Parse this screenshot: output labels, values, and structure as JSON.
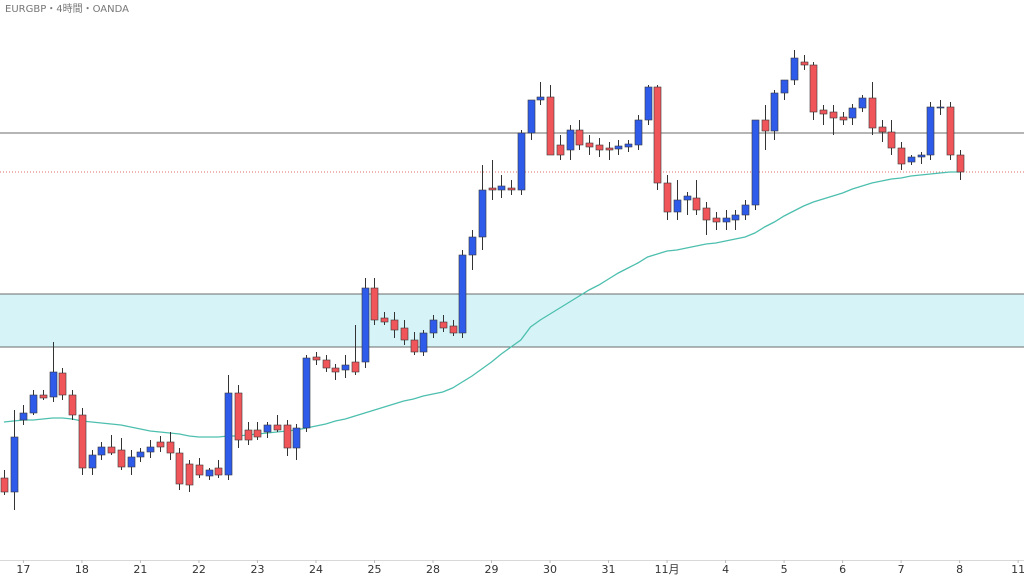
{
  "chart_data": {
    "type": "candlestick",
    "title": "EURGBP・4時間・OANDA",
    "xlim": [
      -0.4,
      104.6
    ],
    "ylim": [
      0,
      560
    ],
    "xticks": [
      {
        "value": 2,
        "label": "17"
      },
      {
        "value": 8,
        "label": "18"
      },
      {
        "value": 14,
        "label": "21"
      },
      {
        "value": 20,
        "label": "22"
      },
      {
        "value": 26,
        "label": "23"
      },
      {
        "value": 32,
        "label": "24"
      },
      {
        "value": 38,
        "label": "25"
      },
      {
        "value": 44,
        "label": "28"
      },
      {
        "value": 50,
        "label": "29"
      },
      {
        "value": 56,
        "label": "30"
      },
      {
        "value": 62,
        "label": "31"
      },
      {
        "value": 68,
        "label": "11月"
      },
      {
        "value": 74,
        "label": "4"
      },
      {
        "value": 80,
        "label": "5"
      },
      {
        "value": 86,
        "label": "6"
      },
      {
        "value": 92,
        "label": "7"
      },
      {
        "value": 98,
        "label": "8"
      },
      {
        "value": 104,
        "label": "11"
      }
    ],
    "up_color": "#2f5bea",
    "down_color": "#f0555a",
    "wick_color": "#333333",
    "open": [
      82,
      68,
      140,
      147,
      165,
      163,
      187,
      165,
      145,
      92,
      105,
      113,
      110,
      93,
      103,
      108,
      118,
      118,
      107,
      96,
      95,
      84,
      92,
      85,
      167,
      130,
      130,
      128,
      135,
      135,
      112,
      132,
      203,
      200,
      192,
      190,
      198,
      198,
      272,
      242,
      240,
      232,
      220,
      208,
      227,
      238,
      234,
      227,
      305,
      323,
      372,
      370,
      372,
      370,
      427,
      460,
      463,
      415,
      410,
      430,
      417,
      415,
      412,
      411,
      413,
      415,
      440,
      473,
      377,
      348,
      360,
      362,
      352,
      342,
      338,
      340,
      345,
      355,
      440,
      429,
      467,
      480,
      498,
      495,
      450,
      448,
      443,
      442,
      452,
      462,
      433,
      428,
      412,
      398,
      403,
      405,
      452,
      453,
      405
    ],
    "high": [
      90,
      150,
      155,
      170,
      170,
      218,
      192,
      170,
      152,
      110,
      118,
      125,
      122,
      110,
      112,
      120,
      124,
      128,
      112,
      100,
      102,
      92,
      100,
      185,
      175,
      138,
      138,
      138,
      145,
      140,
      136,
      205,
      208,
      205,
      196,
      205,
      235,
      282,
      282,
      248,
      248,
      240,
      228,
      230,
      245,
      245,
      240,
      310,
      330,
      395,
      400,
      385,
      380,
      430,
      460,
      478,
      475,
      425,
      435,
      440,
      425,
      422,
      418,
      420,
      420,
      445,
      475,
      475,
      385,
      380,
      368,
      380,
      358,
      348,
      350,
      350,
      360,
      440,
      455,
      470,
      480,
      510,
      505,
      498,
      455,
      455,
      448,
      456,
      465,
      478,
      440,
      440,
      418,
      405,
      408,
      458,
      460,
      458,
      410
    ],
    "low": [
      65,
      50,
      135,
      145,
      160,
      158,
      160,
      140,
      85,
      85,
      100,
      105,
      90,
      85,
      98,
      102,
      108,
      100,
      70,
      68,
      82,
      80,
      82,
      80,
      112,
      115,
      120,
      122,
      128,
      104,
      100,
      128,
      195,
      188,
      180,
      182,
      185,
      192,
      235,
      235,
      222,
      215,
      205,
      204,
      222,
      228,
      224,
      222,
      290,
      310,
      360,
      362,
      365,
      365,
      420,
      455,
      405,
      400,
      400,
      410,
      405,
      403,
      400,
      405,
      408,
      410,
      435,
      370,
      340,
      340,
      345,
      345,
      325,
      330,
      330,
      330,
      340,
      350,
      410,
      420,
      460,
      475,
      490,
      440,
      435,
      425,
      435,
      435,
      448,
      425,
      418,
      405,
      390,
      395,
      396,
      400,
      445,
      400,
      380
    ],
    "close": [
      68,
      123,
      147,
      165,
      162,
      188,
      165,
      145,
      92,
      105,
      113,
      107,
      93,
      103,
      108,
      113,
      113,
      107,
      76,
      75,
      85,
      90,
      85,
      167,
      120,
      120,
      123,
      135,
      130,
      112,
      132,
      202,
      200,
      192,
      188,
      195,
      188,
      272,
      240,
      238,
      230,
      220,
      208,
      227,
      240,
      232,
      227,
      305,
      323,
      370,
      370,
      374,
      370,
      427,
      460,
      463,
      405,
      405,
      430,
      415,
      413,
      410,
      410,
      414,
      416,
      440,
      473,
      377,
      348,
      360,
      364,
      350,
      340,
      338,
      342,
      345,
      355,
      440,
      429,
      467,
      480,
      502,
      495,
      448,
      446,
      442,
      440,
      452,
      462,
      432,
      428,
      412,
      396,
      403,
      405,
      453,
      453,
      405,
      388
    ],
    "ma": {
      "color": "#4dbfae",
      "values": [
        138,
        139,
        140,
        140,
        141,
        142,
        142,
        141,
        139,
        138,
        137,
        136,
        135,
        133,
        131,
        129,
        128,
        127,
        126,
        124,
        123,
        123,
        123,
        124,
        124,
        125,
        126,
        127,
        128,
        129,
        130,
        132,
        134,
        136,
        139,
        141,
        144,
        147,
        150,
        153,
        156,
        159,
        161,
        164,
        166,
        168,
        172,
        178,
        184,
        191,
        198,
        206,
        213,
        220,
        233,
        240,
        246,
        252,
        258,
        264,
        270,
        275,
        281,
        287,
        292,
        297,
        303,
        306,
        309,
        310,
        312,
        314,
        316,
        317,
        319,
        321,
        323,
        327,
        333,
        338,
        344,
        349,
        354,
        358,
        361,
        364,
        367,
        371,
        374,
        377,
        379,
        381,
        382,
        384,
        385,
        386,
        387,
        388,
        388
      ]
    },
    "zone": {
      "range": [
        213,
        266
      ],
      "color": "#d6f4f7",
      "border": "#6b6b6b"
    },
    "levels": [
      {
        "value": 427,
        "color": "#6b6b6b",
        "style": "solid"
      },
      {
        "value": 388,
        "color": "#e06c6c",
        "style": "dotted"
      }
    ]
  }
}
